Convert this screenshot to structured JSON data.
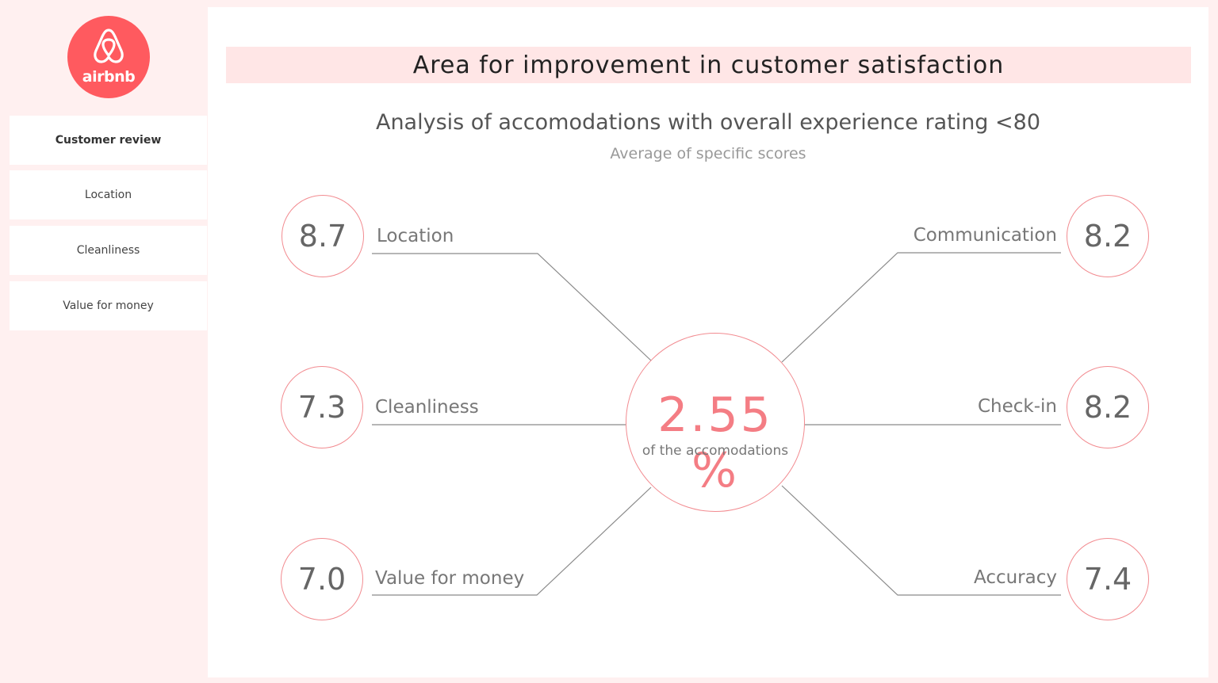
{
  "brand": {
    "logo_text": "airbnb",
    "color": "#ff5a5f"
  },
  "nav": {
    "items": [
      {
        "label": "Customer review",
        "active": true
      },
      {
        "label": "Location",
        "active": false
      },
      {
        "label": "Cleanliness",
        "active": false
      },
      {
        "label": "Value for money",
        "active": false
      }
    ]
  },
  "main": {
    "title": "Area for improvement in customer satisfaction",
    "subtitle": "Analysis of accomodations with overall experience rating <80",
    "subsubtitle": "Average of specific scores",
    "center": {
      "value": "2.55 %",
      "caption": "of the accomodations"
    },
    "scores": {
      "location": {
        "label": "Location",
        "value": "8.7"
      },
      "cleanliness": {
        "label": "Cleanliness",
        "value": "7.3"
      },
      "value_for_money": {
        "label": "Value for money",
        "value": "7.0"
      },
      "communication": {
        "label": "Communication",
        "value": "8.2"
      },
      "check_in": {
        "label": "Check-in",
        "value": "8.2"
      },
      "accuracy": {
        "label": "Accuracy",
        "value": "7.4"
      }
    }
  },
  "colors": {
    "accent": "#f47d84",
    "panel_bg": "#fff0f0",
    "title_bg": "#ffe6e6"
  }
}
